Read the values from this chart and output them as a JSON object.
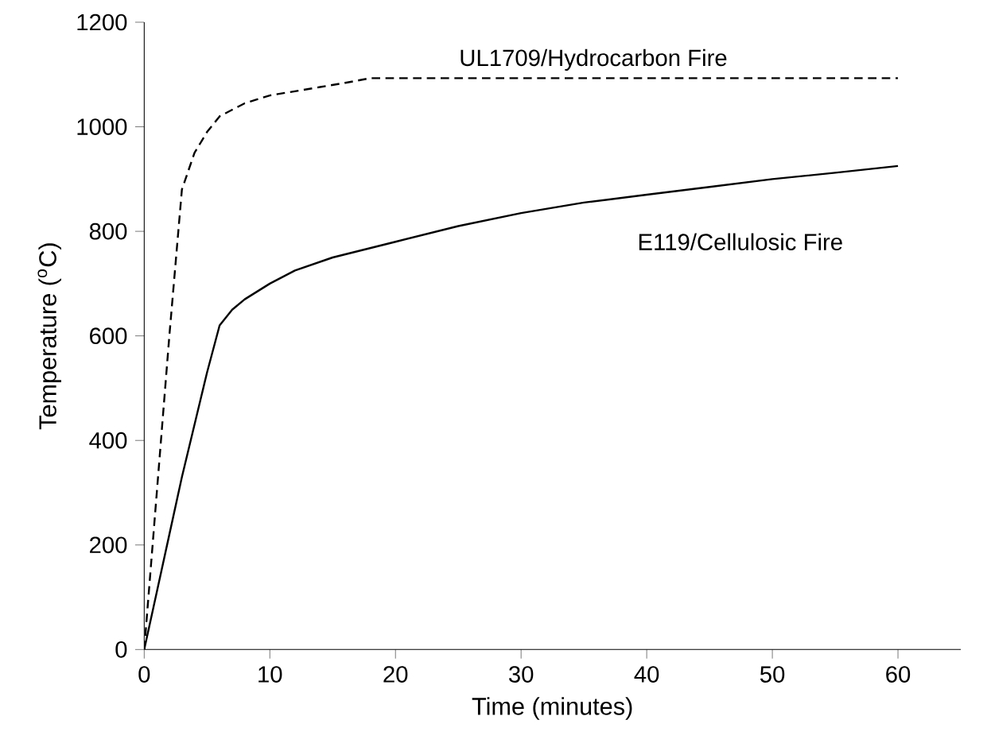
{
  "chart_data": {
    "type": "line",
    "xlabel": "Time (minutes)",
    "ylabel": "Temperature ($^{o}$C)",
    "xlim": [
      0,
      65
    ],
    "ylim": [
      0,
      1200
    ],
    "xticks": [
      0,
      10,
      20,
      30,
      40,
      50,
      60
    ],
    "yticks": [
      0,
      200,
      400,
      600,
      800,
      1000,
      1200
    ],
    "grid": false,
    "legend": false,
    "marker": "none",
    "series": [
      {
        "name": "UL1709/Hydrocarbon Fire",
        "color": "#000000",
        "line_style": "dashed",
        "x": [
          0,
          1,
          2,
          3,
          4,
          5,
          6,
          8,
          10,
          12,
          14,
          16,
          18,
          60
        ],
        "values": [
          0,
          300,
          600,
          880,
          950,
          990,
          1020,
          1045,
          1060,
          1068,
          1076,
          1084,
          1093,
          1093
        ]
      },
      {
        "name": "E119/Cellulosic Fire",
        "color": "#000000",
        "line_style": "solid",
        "x": [
          0,
          1,
          2,
          3,
          4,
          5,
          6,
          7,
          8,
          10,
          12,
          15,
          20,
          25,
          30,
          35,
          40,
          45,
          50,
          55,
          60
        ],
        "values": [
          0,
          110,
          220,
          330,
          430,
          530,
          620,
          650,
          670,
          700,
          725,
          750,
          780,
          810,
          835,
          855,
          870,
          885,
          900,
          912,
          925
        ]
      }
    ]
  }
}
